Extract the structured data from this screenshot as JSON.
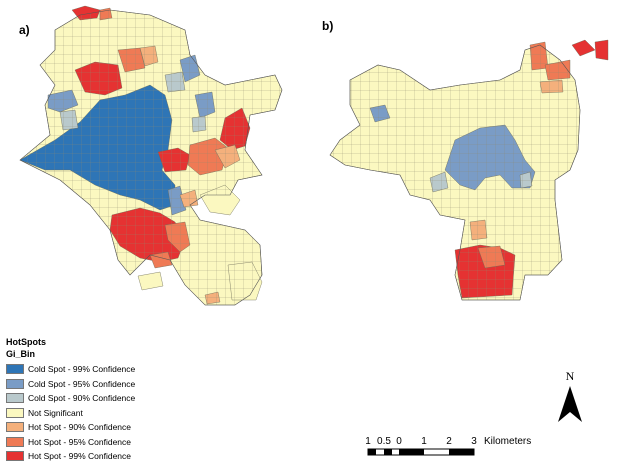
{
  "panels": {
    "a": {
      "label": "a)"
    },
    "b": {
      "label": "b)"
    }
  },
  "legend": {
    "title": "HotSpots",
    "field": "Gi_Bin",
    "items": [
      {
        "label": "Cold Spot - 99% Confidence",
        "color": "#2e75b6"
      },
      {
        "label": "Cold Spot - 95% Confidence",
        "color": "#7a9cc6"
      },
      {
        "label": "Cold Spot - 90% Confidence",
        "color": "#b9c9cc"
      },
      {
        "label": "Not Significant",
        "color": "#fbf8c0"
      },
      {
        "label": "Hot Spot - 90% Confidence",
        "color": "#f4b07c"
      },
      {
        "label": "Hot Spot - 95% Confidence",
        "color": "#ef7a55"
      },
      {
        "label": "Hot Spot - 99% Confidence",
        "color": "#e53232"
      }
    ]
  },
  "north_arrow": {
    "letter": "N"
  },
  "scale_bar": {
    "ticks": [
      "1",
      "0.5",
      "0",
      "1",
      "2",
      "3"
    ],
    "unit": "Kilometers"
  }
}
